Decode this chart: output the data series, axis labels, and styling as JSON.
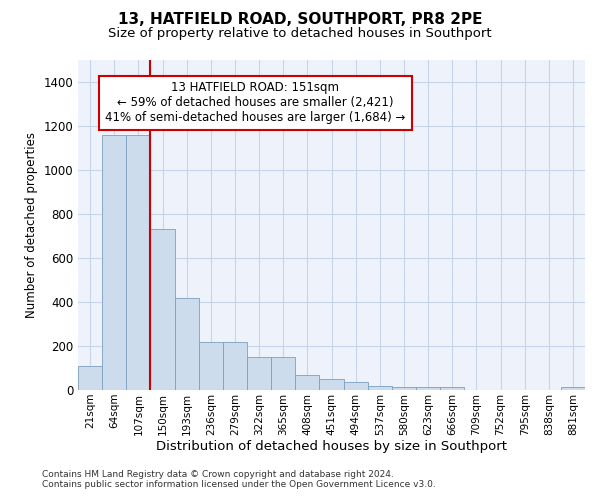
{
  "title_line1": "13, HATFIELD ROAD, SOUTHPORT, PR8 2PE",
  "title_line2": "Size of property relative to detached houses in Southport",
  "xlabel": "Distribution of detached houses by size in Southport",
  "ylabel": "Number of detached properties",
  "footer_line1": "Contains HM Land Registry data © Crown copyright and database right 2024.",
  "footer_line2": "Contains public sector information licensed under the Open Government Licence v3.0.",
  "annotation_line1": "13 HATFIELD ROAD: 151sqm",
  "annotation_line2": "← 59% of detached houses are smaller (2,421)",
  "annotation_line3": "41% of semi-detached houses are larger (1,684) →",
  "bar_color": "#cddcec",
  "bar_edge_color": "#7aa0c0",
  "grid_color": "#c8d4e8",
  "background_color": "#eef2fa",
  "red_line_color": "#cc0000",
  "annotation_box_edge": "#cc0000",
  "ylim": [
    0,
    1500
  ],
  "yticks": [
    0,
    200,
    400,
    600,
    800,
    1000,
    1200,
    1400
  ],
  "bin_labels": [
    "21sqm",
    "64sqm",
    "107sqm",
    "150sqm",
    "193sqm",
    "236sqm",
    "279sqm",
    "322sqm",
    "365sqm",
    "408sqm",
    "451sqm",
    "494sqm",
    "537sqm",
    "580sqm",
    "623sqm",
    "666sqm",
    "709sqm",
    "752sqm",
    "795sqm",
    "838sqm",
    "881sqm"
  ],
  "bar_values": [
    107,
    1160,
    1160,
    730,
    420,
    220,
    220,
    150,
    150,
    70,
    50,
    35,
    20,
    15,
    15,
    12,
    0,
    0,
    0,
    0,
    12
  ],
  "red_line_bin_index": 3,
  "n_bins": 21
}
